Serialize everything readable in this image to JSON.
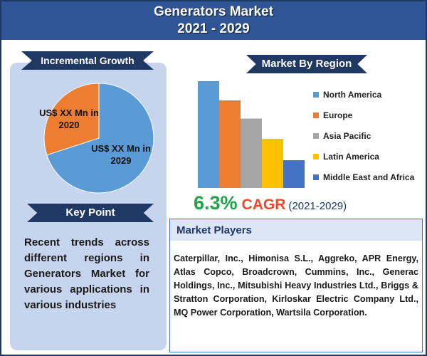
{
  "header": {
    "title_line1": "Generators Market",
    "title_line2": "2021 - 2029"
  },
  "incremental_growth": {
    "heading": "Incremental Growth",
    "label_2020": "US$ XX Mn in 2020",
    "label_2029": "US$ XX Mn in 2029"
  },
  "key_point": {
    "heading": "Key Point",
    "text": "Recent trends across different regions in Generators Market for various applications in various industries"
  },
  "market_by_region": {
    "heading": "Market By Region"
  },
  "cagr": {
    "value": "6.3%",
    "label": "CAGR",
    "period": "(2021-2029)"
  },
  "market_players": {
    "heading": "Market Players",
    "text": "Caterpillar, Inc., Himonisa S.L., Aggreko, APR Energy, Atlas Copco, Broadcrown, Cummins, Inc., Generac Holdings, Inc., Mitsubishi Heavy Industries Ltd., Briggs & Stratton Corporation, Kirloskar Electric Company Ltd., MQ Power Corporation, Wartsila Corporation."
  },
  "chart_data": [
    {
      "type": "pie",
      "slices": [
        {
          "label": "US$ XX Mn in 2020",
          "value": 30,
          "color": "#ed7d31"
        },
        {
          "label": "US$ XX Mn in 2029",
          "value": 70,
          "color": "#5b9bd5"
        }
      ]
    },
    {
      "type": "bar",
      "categories": [
        "North America",
        "Europe",
        "Asia Pacific",
        "Latin America",
        "Middle East and Africa"
      ],
      "values": [
        100,
        82,
        65,
        46,
        26
      ],
      "colors": [
        "#5b9bd5",
        "#ed7d31",
        "#a5a5a5",
        "#ffc000",
        "#4472c4"
      ],
      "ylim": [
        0,
        100
      ],
      "legend_position": "right"
    }
  ]
}
